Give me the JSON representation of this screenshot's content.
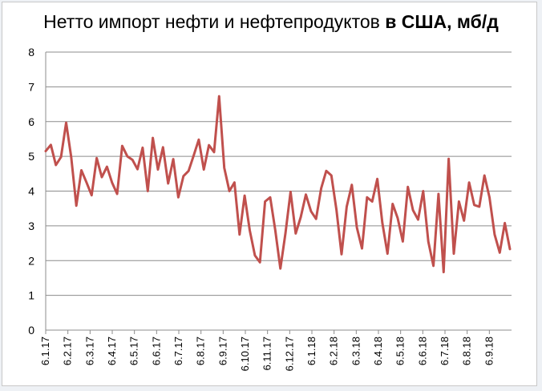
{
  "chart_data": {
    "type": "line",
    "title": "Нетто импорт нефти и нефтепродуктов",
    "title_bold": "в США, мб/д",
    "xlabel": "",
    "ylabel": "",
    "ylim": [
      0,
      8
    ],
    "yticks": [
      0,
      1,
      2,
      3,
      4,
      5,
      6,
      7,
      8
    ],
    "grid": true,
    "legend": "none",
    "line_color": "#c0504d",
    "tick_labels": [
      "6.1.17",
      "6.2.17",
      "6.3.17",
      "6.4.17",
      "6.5.17",
      "6.6.17",
      "6.7.17",
      "6.8.17",
      "6.9.17",
      "6.10.17",
      "6.11.17",
      "6.12.17",
      "6.1.18",
      "6.2.18",
      "6.3.18",
      "6.4.18",
      "6.5.18",
      "6.6.18",
      "6.7.18",
      "6.8.18",
      "6.9.18"
    ],
    "series": [
      {
        "values": [
          5.15,
          5.33,
          4.75,
          4.98,
          5.97,
          4.98,
          3.58,
          4.6,
          4.25,
          3.88,
          4.95,
          4.4,
          4.7,
          4.25,
          3.92,
          5.3,
          5.0,
          4.9,
          4.63,
          5.25,
          4.0,
          5.53,
          4.62,
          5.26,
          4.22,
          4.92,
          3.82,
          4.43,
          4.58,
          5.02,
          5.48,
          4.62,
          5.32,
          5.12,
          6.73,
          4.67,
          4.0,
          4.25,
          2.75,
          3.87,
          2.87,
          2.15,
          1.95,
          3.7,
          3.82,
          2.88,
          1.77,
          2.78,
          3.98,
          2.78,
          3.25,
          3.9,
          3.42,
          3.2,
          4.08,
          4.58,
          4.45,
          3.45,
          2.18,
          3.55,
          4.18,
          2.95,
          2.35,
          3.82,
          3.7,
          4.35,
          3.08,
          2.2,
          3.63,
          3.22,
          2.55,
          4.12,
          3.45,
          3.18,
          4.0,
          2.55,
          1.85,
          3.92,
          1.67,
          4.93,
          2.2,
          3.7,
          3.15,
          4.25,
          3.6,
          3.55,
          4.45,
          3.82,
          2.75,
          2.23,
          3.08,
          2.33
        ]
      }
    ]
  }
}
